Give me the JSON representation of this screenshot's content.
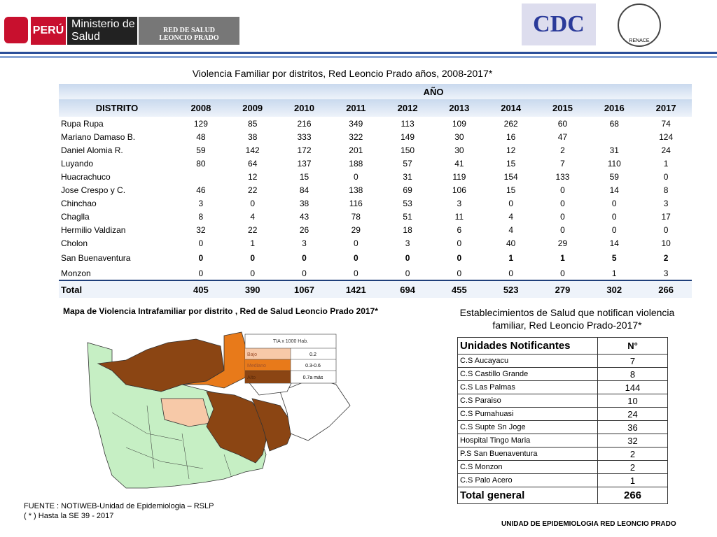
{
  "header": {
    "peru": "PERÚ",
    "ministerio": "Ministerio de Salud",
    "red": "RED DE SALUD LEONCIO PRADO",
    "cdc": "CDC",
    "renace": "RENACE"
  },
  "main_table": {
    "title": "Violencia Familiar  por distritos, Red Leoncio Prado años, 2008-2017*",
    "group_header": "AÑO",
    "first_header": "DISTRITO",
    "years": [
      "2008",
      "2009",
      "2010",
      "2011",
      "2012",
      "2013",
      "2014",
      "2015",
      "2016",
      "2017"
    ],
    "rows": [
      {
        "name": "Rupa Rupa",
        "values": [
          129,
          85,
          216,
          349,
          113,
          109,
          262,
          60,
          68,
          74
        ]
      },
      {
        "name": "Mariano Damaso B.",
        "values": [
          48,
          38,
          333,
          322,
          149,
          30,
          16,
          47,
          null,
          124
        ]
      },
      {
        "name": "Daniel Alomia R.",
        "values": [
          59,
          142,
          172,
          201,
          150,
          30,
          12,
          2,
          31,
          24
        ]
      },
      {
        "name": "Luyando",
        "values": [
          80,
          64,
          137,
          188,
          57,
          41,
          15,
          7,
          110,
          1
        ]
      },
      {
        "name": "Huacrachuco",
        "values": [
          null,
          12,
          15,
          0,
          31,
          119,
          154,
          133,
          59,
          0
        ]
      },
      {
        "name": "Jose Crespo y C.",
        "values": [
          46,
          22,
          84,
          138,
          69,
          106,
          15,
          0,
          14,
          8
        ]
      },
      {
        "name": "Chinchao",
        "values": [
          3,
          0,
          38,
          116,
          53,
          3,
          0,
          0,
          0,
          3
        ]
      },
      {
        "name": "Chaglla",
        "values": [
          8,
          4,
          43,
          78,
          51,
          11,
          4,
          0,
          0,
          17
        ]
      },
      {
        "name": "Hermilio Valdizan",
        "values": [
          32,
          22,
          26,
          29,
          18,
          6,
          4,
          0,
          0,
          0
        ]
      },
      {
        "name": "Cholon",
        "values": [
          0,
          1,
          3,
          0,
          3,
          0,
          40,
          29,
          14,
          10
        ]
      },
      {
        "name": "San Buenaventura",
        "values": [
          0,
          0,
          0,
          0,
          0,
          0,
          1,
          1,
          5,
          2
        ]
      },
      {
        "name": "Monzon",
        "values": [
          0,
          0,
          0,
          0,
          0,
          0,
          0,
          0,
          1,
          3
        ]
      }
    ],
    "total": {
      "name": "Total",
      "values": [
        405,
        390,
        1067,
        1421,
        694,
        455,
        523,
        279,
        302,
        266
      ]
    }
  },
  "map": {
    "title": "Mapa de  Violencia Intrafamiliar  por distrito , Red de Salud Leoncio Prado  2017*",
    "legend_title": "TIA x 1000 Hab.",
    "legend": [
      {
        "label": "Bajo",
        "range": "0.2"
      },
      {
        "label": "Mediano",
        "range": "0.3-0.6"
      },
      {
        "label": "Alto",
        "range": "0.7a más"
      }
    ]
  },
  "units_table": {
    "title": "Establecimientos de Salud que notifican violencia familiar, Red Leoncio Prado-2017*",
    "headers": [
      "Unidades Notificantes",
      "N°"
    ],
    "rows": [
      [
        "C.S Aucayacu",
        7
      ],
      [
        "C.S Castillo Grande",
        8
      ],
      [
        "C.S Las Palmas",
        144
      ],
      [
        "C.S Paraiso",
        10
      ],
      [
        "C.S Pumahuasi",
        24
      ],
      [
        "C.S Supte Sn Joge",
        36
      ],
      [
        "Hospital Tingo Maria",
        32
      ],
      [
        "P.S San Buenaventura",
        2
      ],
      [
        "C.S Monzon",
        2
      ],
      [
        "C.S Palo Acero",
        1
      ]
    ],
    "total": [
      "Total general",
      266
    ]
  },
  "footer": {
    "source": "FUENTE : NOTIWEB-Unidad de Epidemiologia – RSLP",
    "note": "( * ) Hasta la SE  39 - 2017",
    "unit": "UNIDAD  DE EPIDEMIOLOGIA RED LEONCIO PRADO"
  }
}
